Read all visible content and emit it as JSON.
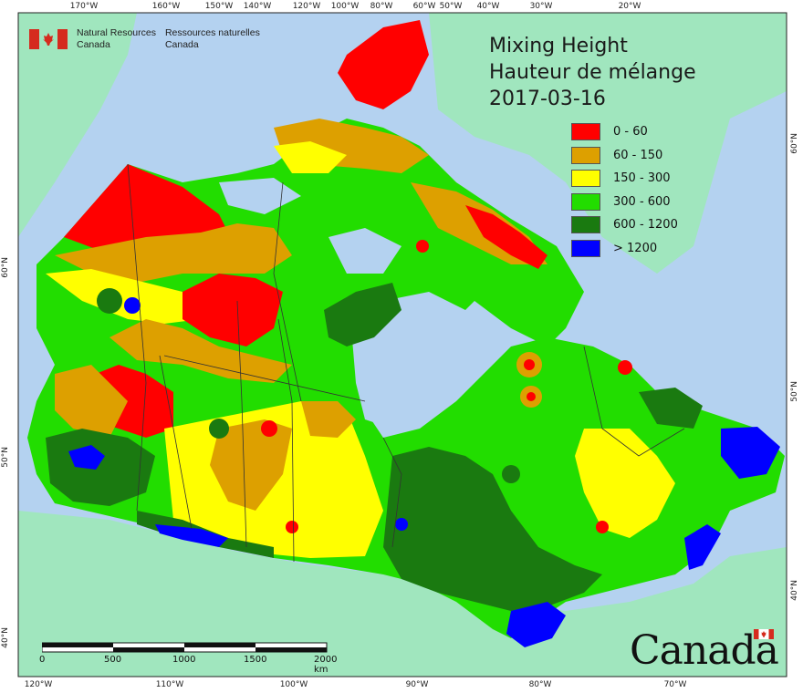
{
  "agency": {
    "name_en_1": "Natural Resources",
    "name_en_2": "Canada",
    "name_fr_1": "Ressources naturelles",
    "name_fr_2": "Canada"
  },
  "title": {
    "line1": "Mixing Height",
    "line2": "Hauteur de mélange",
    "date": "2017-03-16"
  },
  "legend": [
    {
      "label": "0 - 60",
      "color": "#ff0000"
    },
    {
      "label": "60 - 150",
      "color": "#dda000"
    },
    {
      "label": "150 - 300",
      "color": "#ffff00"
    },
    {
      "label": "300 - 600",
      "color": "#22dd00"
    },
    {
      "label": "600 - 1200",
      "color": "#1a7a10"
    },
    {
      "label": "> 1200",
      "color": "#0000ff"
    }
  ],
  "graticule": {
    "top": [
      "170°W",
      "160°W",
      "150°W",
      "140°W",
      "120°W",
      "100°W",
      "80°W",
      "60°W",
      "50°W",
      "40°W",
      "30°W",
      "20°W"
    ],
    "bottom": [
      "120°W",
      "110°W",
      "100°W",
      "90°W",
      "80°W",
      "70°W"
    ],
    "left": [
      "60°N",
      "50°N",
      "40°N"
    ],
    "right": [
      "60°N",
      "50°N",
      "40°N"
    ]
  },
  "scalebar": {
    "ticks": [
      "0",
      "500",
      "1000",
      "1500",
      "2000 km"
    ]
  },
  "wordmark": "Canada",
  "colors": {
    "ocean": "#b4d2f0",
    "foreign_land": "#a0e6be",
    "border": "#333333"
  }
}
